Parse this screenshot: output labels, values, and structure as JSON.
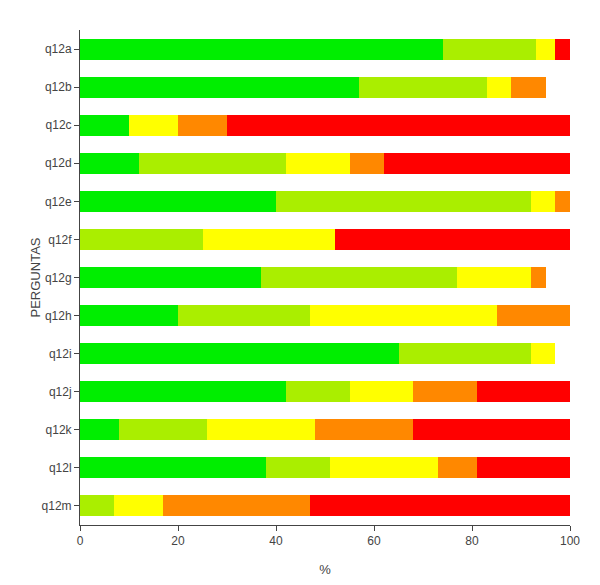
{
  "chart_data": {
    "type": "bar",
    "orientation": "horizontal",
    "stacked": true,
    "categories": [
      "q12a",
      "q12b",
      "q12c",
      "q12d",
      "q12e",
      "q12f",
      "q12g",
      "q12h",
      "q12i",
      "q12j",
      "q12k",
      "q12l",
      "q12m"
    ],
    "series": [
      {
        "color": "#00EE00",
        "values": [
          74,
          57,
          10,
          12,
          40,
          0,
          37,
          20,
          65,
          42,
          8,
          38,
          0
        ]
      },
      {
        "color": "#AAEE00",
        "values": [
          19,
          26,
          0,
          30,
          52,
          25,
          40,
          27,
          27,
          13,
          18,
          13,
          7
        ]
      },
      {
        "color": "#FFFF00",
        "values": [
          4,
          5,
          10,
          13,
          5,
          27,
          15,
          38,
          5,
          13,
          22,
          22,
          10
        ]
      },
      {
        "color": "#FF8800",
        "values": [
          0,
          7,
          10,
          7,
          3,
          0,
          3,
          15,
          0,
          13,
          20,
          8,
          30
        ]
      },
      {
        "color": "#FF0000",
        "values": [
          3,
          0,
          70,
          38,
          0,
          48,
          0,
          0,
          0,
          19,
          32,
          19,
          53
        ]
      }
    ],
    "xlabel": "%",
    "ylabel": "PERGUNTAS",
    "xlim": [
      0,
      100
    ],
    "xticks": [
      0,
      20,
      40,
      60,
      80,
      100
    ],
    "grid": false
  }
}
